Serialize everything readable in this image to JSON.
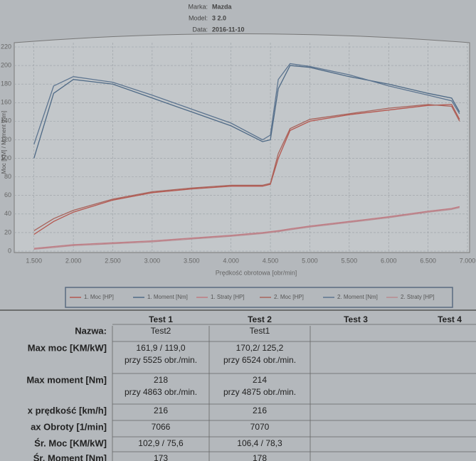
{
  "header": {
    "fields": [
      {
        "label": "Marka:",
        "value": "Mazda"
      },
      {
        "label": "Model:",
        "value": "3 2.0"
      },
      {
        "label": "Data:",
        "value": "2016-11-10"
      }
    ]
  },
  "chart_data": {
    "type": "line",
    "x_label": "Prędkość obrotowa [obr/min]",
    "y_label": "Moc [KM] / Moment [Nm]",
    "x": [
      1500,
      1750,
      2000,
      2500,
      3000,
      3500,
      4000,
      4400,
      4500,
      4600,
      4750,
      5000,
      5500,
      6000,
      6500,
      6800,
      6900
    ],
    "series": [
      {
        "name": "1. Moc [HP]",
        "color": "#b5574f",
        "values": [
          18,
          32,
          42,
          55,
          63,
          67,
          70,
          70,
          72,
          100,
          130,
          140,
          147,
          152,
          157,
          158,
          142
        ]
      },
      {
        "name": "1. Moment [Nm]",
        "color": "#4f6a86",
        "values": [
          100,
          170,
          185,
          180,
          165,
          150,
          135,
          118,
          120,
          175,
          200,
          198,
          188,
          180,
          170,
          165,
          150
        ]
      },
      {
        "name": "1. Straty [HP]",
        "color": "#c07a82",
        "values": [
          3,
          5,
          7,
          9,
          11,
          14,
          17,
          20,
          21,
          22,
          24,
          27,
          32,
          37,
          43,
          46,
          48
        ]
      },
      {
        "name": "2. Moc [HP]",
        "color": "#a8645c",
        "values": [
          22,
          35,
          44,
          56,
          64,
          68,
          71,
          71,
          73,
          105,
          132,
          142,
          148,
          154,
          158,
          156,
          140
        ]
      },
      {
        "name": "2. Moment [Nm]",
        "color": "#5d7590",
        "values": [
          115,
          178,
          188,
          182,
          168,
          153,
          138,
          120,
          125,
          185,
          202,
          199,
          190,
          178,
          168,
          162,
          148
        ]
      },
      {
        "name": "2. Straty [HP]",
        "color": "#b98a90",
        "values": [
          2,
          4,
          6,
          8,
          10,
          13,
          16,
          19,
          20,
          21,
          23,
          26,
          31,
          36,
          42,
          45,
          47
        ]
      }
    ],
    "xlim": [
      1250,
      7000
    ],
    "xticks": [
      {
        "value": 1500,
        "label": "1.500"
      },
      {
        "value": 2000,
        "label": "2.000"
      },
      {
        "value": 2500,
        "label": "2.500"
      },
      {
        "value": 3000,
        "label": "3.000"
      },
      {
        "value": 3500,
        "label": "3.500"
      },
      {
        "value": 4000,
        "label": "4.000"
      },
      {
        "value": 4500,
        "label": "4.500"
      },
      {
        "value": 5000,
        "label": "5.000"
      },
      {
        "value": 5500,
        "label": "5.500"
      },
      {
        "value": 6000,
        "label": "6.000"
      },
      {
        "value": 6500,
        "label": "6.500"
      },
      {
        "value": 7000,
        "label": "7.000"
      }
    ],
    "ylim": [
      0,
      220
    ],
    "yticks": [
      0,
      20,
      40,
      60,
      80,
      100,
      120,
      140,
      160,
      180,
      200,
      220
    ],
    "grid": true
  },
  "table": {
    "columns": [
      "Test 1",
      "Test 2",
      "Test 3",
      "Test 4"
    ],
    "rows": [
      {
        "label": "Nazwa:",
        "cells": [
          {
            "main": "Test2"
          },
          {
            "main": "Test1"
          }
        ]
      },
      {
        "label": "Max moc [KM/kW]",
        "cells": [
          {
            "main": "161,9 / 119,0",
            "sub": "przy 5525 obr./min."
          },
          {
            "main": "170,2/ 125,2",
            "sub": "przy 6524 obr./min."
          }
        ]
      },
      {
        "label": "Max moment [Nm]",
        "cells": [
          {
            "main": "218",
            "sub": "przy 4863 obr./min."
          },
          {
            "main": "214",
            "sub": "przy 4875 obr./min."
          }
        ]
      },
      {
        "label": "x prędkość [km/h]",
        "cells": [
          {
            "main": "216"
          },
          {
            "main": "216"
          }
        ]
      },
      {
        "label": "ax Obroty [1/min]",
        "cells": [
          {
            "main": "7066"
          },
          {
            "main": "7070"
          }
        ]
      },
      {
        "label": "Śr. Moc [KM/kW]",
        "cells": [
          {
            "main": "102,9 / 75,6"
          },
          {
            "main": "106,4 / 78,3"
          }
        ]
      },
      {
        "label": "Śr. Moment [Nm]",
        "cells": [
          {
            "main": "173"
          },
          {
            "main": "178"
          }
        ]
      }
    ]
  }
}
